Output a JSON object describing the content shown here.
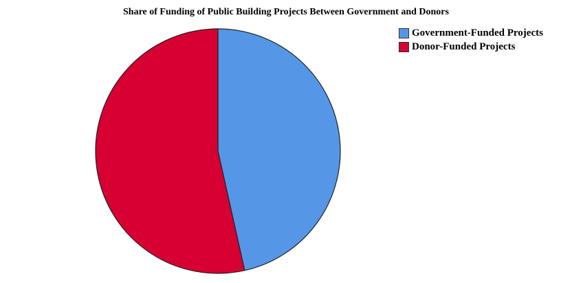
{
  "chart_data": {
    "type": "pie",
    "title": "Share of Funding of Public Building Projects Between Government and Donors",
    "categories": [
      "Government-Funded Projects",
      "Donor-Funded Projects"
    ],
    "values": [
      46.5,
      53.5
    ],
    "colors": [
      "#5597e6",
      "#d60032"
    ],
    "legend_position": "top-right",
    "start_angle": "12 o'clock, clockwise"
  }
}
